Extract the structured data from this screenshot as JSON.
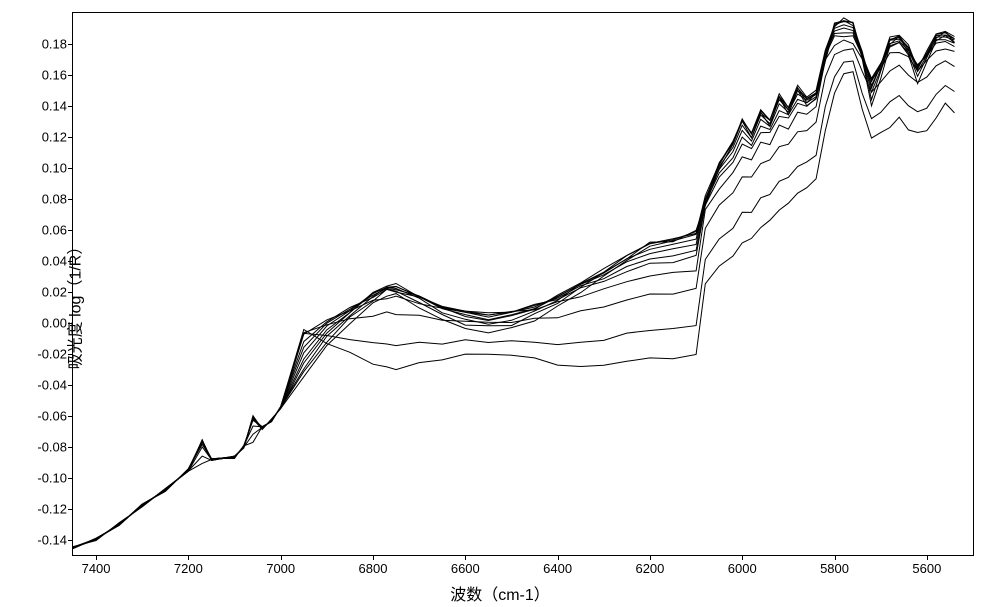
{
  "chart": {
    "type": "line",
    "background_color": "#ffffff",
    "line_color": "#000000",
    "line_width": 1,
    "xlabel": "波数（cm-1）",
    "ylabel": "吸光度 log（1/R）",
    "label_fontsize": 16,
    "tick_fontsize": 13,
    "xlim": [
      7450,
      5500
    ],
    "ylim": [
      -0.15,
      0.2
    ],
    "x_ticks": [
      7400,
      7200,
      7000,
      6800,
      6600,
      6400,
      6200,
      6000,
      5800,
      5600
    ],
    "y_ticks": [
      -0.14,
      -0.12,
      -0.1,
      -0.08,
      -0.06,
      -0.04,
      -0.02,
      0.0,
      0.02,
      0.04,
      0.06,
      0.08,
      0.1,
      0.12,
      0.14,
      0.16,
      0.18
    ],
    "x_common": [
      7450,
      7400,
      7350,
      7300,
      7250,
      7200,
      7170,
      7150,
      7100,
      7080,
      7060,
      7040,
      7020,
      7000,
      6950,
      6900,
      6850,
      6800,
      6770,
      6750,
      6700,
      6650,
      6600,
      6550,
      6500,
      6450,
      6400,
      6350,
      6300,
      6250,
      6200,
      6150,
      6100,
      6080,
      6050,
      6020,
      6000,
      5980,
      5960,
      5940,
      5920,
      5900,
      5880,
      5860,
      5840,
      5820,
      5800,
      5780,
      5760,
      5740,
      5720,
      5700,
      5680,
      5660,
      5640,
      5620,
      5600,
      5580,
      5560,
      5540
    ],
    "series": [
      {
        "offset": 0.0,
        "peak_scale": 1.0
      },
      {
        "offset": 0.003,
        "peak_scale": 0.95
      },
      {
        "offset": 0.005,
        "peak_scale": 0.9
      },
      {
        "offset": 0.007,
        "peak_scale": 0.85
      },
      {
        "offset": 0.006,
        "peak_scale": 0.78
      },
      {
        "offset": 0.006,
        "peak_scale": 0.7
      },
      {
        "offset": 0.005,
        "peak_scale": 0.62
      },
      {
        "offset": 0.004,
        "peak_scale": 0.55
      },
      {
        "offset": 0.0,
        "peak_scale": 0.45
      },
      {
        "offset": -0.01,
        "peak_scale": 0.38
      },
      {
        "offset": -0.03,
        "peak_scale": 0.3
      },
      {
        "offset": -0.045,
        "peak_scale": 0.2
      }
    ],
    "base_shape": [
      -0.145,
      -0.14,
      -0.13,
      -0.118,
      -0.108,
      -0.095,
      -0.078,
      -0.088,
      -0.087,
      -0.08,
      -0.063,
      -0.068,
      -0.063,
      -0.055,
      -0.035,
      -0.015,
      0.0,
      0.012,
      0.018,
      0.018,
      0.01,
      0.002,
      -0.004,
      -0.006,
      -0.004,
      0.002,
      0.01,
      0.02,
      0.03,
      0.04,
      0.05,
      0.052,
      0.058,
      0.075,
      0.1,
      0.115,
      0.13,
      0.12,
      0.135,
      0.128,
      0.145,
      0.135,
      0.15,
      0.14,
      0.145,
      0.168,
      0.192,
      0.196,
      0.194,
      0.17,
      0.14,
      0.158,
      0.178,
      0.182,
      0.172,
      0.155,
      0.168,
      0.182,
      0.186,
      0.18
    ],
    "peak_mask": [
      0,
      0,
      0,
      0,
      0,
      0,
      0.3,
      0,
      0,
      0,
      0.3,
      0,
      0,
      0,
      0.2,
      0.5,
      0.7,
      0.9,
      1.0,
      1.0,
      0.9,
      0.8,
      0.7,
      0.7,
      0.7,
      0.8,
      0.9,
      1.0,
      1.0,
      1.0,
      1.0,
      1.0,
      1.0,
      1.0,
      1.0,
      1.0,
      1.0,
      1.0,
      1.0,
      1.0,
      1.0,
      1.0,
      1.0,
      1.0,
      1.0,
      1.0,
      0.6,
      0.3,
      0.3,
      0.7,
      1.0,
      1.0,
      1.0,
      0.9,
      1.0,
      1.0,
      1.0,
      0.9,
      0.7,
      0.8
    ]
  }
}
